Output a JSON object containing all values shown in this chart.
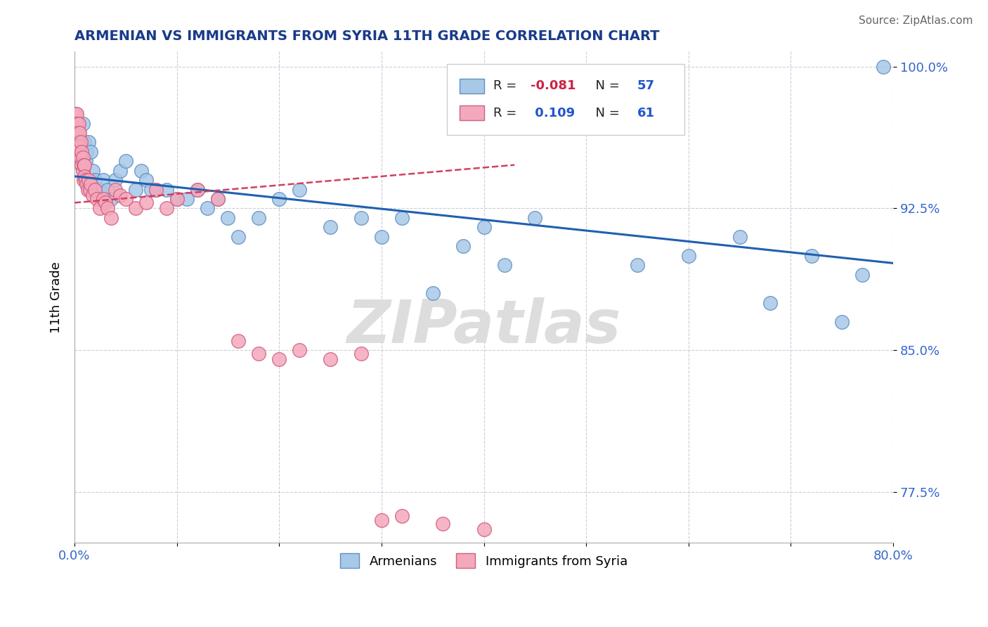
{
  "title": "ARMENIAN VS IMMIGRANTS FROM SYRIA 11TH GRADE CORRELATION CHART",
  "source": "Source: ZipAtlas.com",
  "ylabel": "11th Grade",
  "xlim": [
    0.0,
    0.8
  ],
  "ylim": [
    0.748,
    1.008
  ],
  "yticks": [
    0.775,
    0.85,
    0.925,
    1.0
  ],
  "yticklabels": [
    "77.5%",
    "85.0%",
    "92.5%",
    "100.0%"
  ],
  "xtick_positions": [
    0.0,
    0.1,
    0.2,
    0.3,
    0.4,
    0.5,
    0.6,
    0.7,
    0.8
  ],
  "xticklabels": [
    "0.0%",
    "",
    "",
    "",
    "",
    "",
    "",
    "",
    "80.0%"
  ],
  "blue_color": "#A8C8E8",
  "pink_color": "#F4A8BC",
  "blue_edge": "#6090C0",
  "pink_edge": "#D06080",
  "trend_blue_color": "#2060B0",
  "trend_pink_color": "#D04060",
  "R_blue": -0.081,
  "N_blue": 57,
  "R_pink": 0.109,
  "N_pink": 61,
  "legend_blue": "Armenians",
  "legend_pink": "Immigrants from Syria",
  "watermark": "ZIPatlas",
  "blue_trend_x": [
    0.0,
    0.8
  ],
  "blue_trend_y": [
    0.942,
    0.896
  ],
  "pink_trend_x": [
    0.0,
    0.43
  ],
  "pink_trend_y": [
    0.928,
    0.948
  ],
  "blue_x": [
    0.002,
    0.003,
    0.004,
    0.005,
    0.006,
    0.007,
    0.008,
    0.009,
    0.01,
    0.011,
    0.012,
    0.014,
    0.016,
    0.018,
    0.02,
    0.022,
    0.025,
    0.028,
    0.032,
    0.036,
    0.04,
    0.045,
    0.05,
    0.06,
    0.065,
    0.07,
    0.075,
    0.08,
    0.09,
    0.1,
    0.11,
    0.12,
    0.13,
    0.14,
    0.15,
    0.16,
    0.18,
    0.2,
    0.22,
    0.25,
    0.28,
    0.3,
    0.32,
    0.35,
    0.38,
    0.4,
    0.42,
    0.45,
    0.5,
    0.55,
    0.6,
    0.65,
    0.68,
    0.72,
    0.75,
    0.77,
    0.79
  ],
  "blue_y": [
    0.96,
    0.955,
    0.965,
    0.955,
    0.96,
    0.955,
    0.97,
    0.96,
    0.96,
    0.95,
    0.955,
    0.96,
    0.955,
    0.945,
    0.94,
    0.935,
    0.935,
    0.94,
    0.935,
    0.93,
    0.94,
    0.945,
    0.95,
    0.935,
    0.945,
    0.94,
    0.935,
    0.935,
    0.935,
    0.93,
    0.93,
    0.935,
    0.925,
    0.93,
    0.92,
    0.91,
    0.92,
    0.93,
    0.935,
    0.915,
    0.92,
    0.91,
    0.92,
    0.88,
    0.905,
    0.915,
    0.895,
    0.92,
    0.975,
    0.895,
    0.9,
    0.91,
    0.875,
    0.9,
    0.865,
    0.89,
    1.0
  ],
  "pink_x": [
    0.001,
    0.001,
    0.001,
    0.002,
    0.002,
    0.002,
    0.003,
    0.003,
    0.003,
    0.003,
    0.004,
    0.004,
    0.004,
    0.004,
    0.005,
    0.005,
    0.005,
    0.006,
    0.006,
    0.007,
    0.007,
    0.008,
    0.008,
    0.009,
    0.009,
    0.01,
    0.01,
    0.011,
    0.012,
    0.013,
    0.014,
    0.015,
    0.016,
    0.018,
    0.02,
    0.022,
    0.025,
    0.028,
    0.03,
    0.032,
    0.036,
    0.04,
    0.045,
    0.05,
    0.06,
    0.07,
    0.08,
    0.09,
    0.1,
    0.12,
    0.14,
    0.16,
    0.18,
    0.2,
    0.22,
    0.25,
    0.28,
    0.3,
    0.32,
    0.36,
    0.4
  ],
  "pink_y": [
    0.975,
    0.97,
    0.965,
    0.975,
    0.97,
    0.965,
    0.97,
    0.965,
    0.96,
    0.955,
    0.97,
    0.965,
    0.96,
    0.955,
    0.965,
    0.958,
    0.952,
    0.96,
    0.952,
    0.955,
    0.948,
    0.952,
    0.945,
    0.948,
    0.94,
    0.948,
    0.942,
    0.94,
    0.938,
    0.935,
    0.94,
    0.935,
    0.938,
    0.932,
    0.935,
    0.93,
    0.925,
    0.93,
    0.928,
    0.925,
    0.92,
    0.935,
    0.932,
    0.93,
    0.925,
    0.928,
    0.935,
    0.925,
    0.93,
    0.935,
    0.93,
    0.855,
    0.848,
    0.845,
    0.85,
    0.845,
    0.848,
    0.76,
    0.762,
    0.758,
    0.755
  ]
}
